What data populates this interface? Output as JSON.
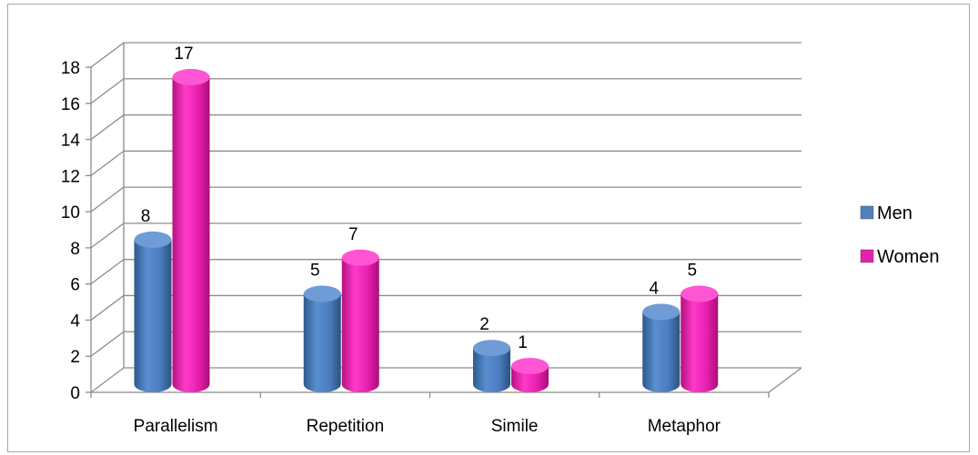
{
  "chart_data": {
    "type": "bar",
    "title": "",
    "xlabel": "",
    "ylabel": "",
    "categories": [
      "Parallelism",
      "Repetition",
      "Simile",
      "Metaphor"
    ],
    "series": [
      {
        "name": "Men",
        "values": [
          8,
          5,
          2,
          4
        ],
        "color": "#4f81bd"
      },
      {
        "name": "Women",
        "values": [
          17,
          7,
          1,
          5
        ],
        "color": "#e61fae"
      }
    ],
    "ylim": [
      0,
      18
    ],
    "yticks": [
      "0",
      "2",
      "4",
      "6",
      "8",
      "10",
      "12",
      "14",
      "16",
      "18"
    ],
    "grid": true,
    "legend_position": "right",
    "style": "3d-cylinder"
  }
}
